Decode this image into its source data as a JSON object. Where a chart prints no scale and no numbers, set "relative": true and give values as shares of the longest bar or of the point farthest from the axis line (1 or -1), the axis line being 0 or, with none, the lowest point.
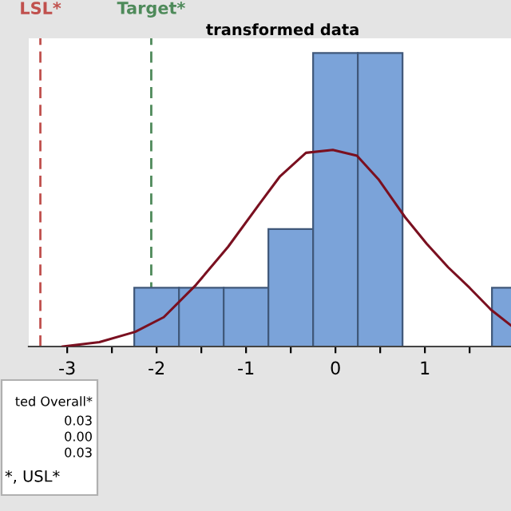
{
  "chart_data": {
    "type": "histogram",
    "title": "transformed data",
    "relative": true,
    "grid": false,
    "legend": false,
    "tick_labels": "x",
    "bins": [
      -2.25,
      -1.75,
      -1.25,
      -0.75,
      -0.25,
      0.25,
      0.75,
      1.25,
      1.75,
      2.25
    ],
    "values": [
      0.2,
      0.2,
      0.2,
      0.4,
      1,
      1,
      0,
      0,
      0.2
    ],
    "color": "#7ba3d9",
    "series": [
      {
        "type": "line",
        "color": "#7a1020",
        "x": [
          -3.05,
          -2.64,
          -2.24,
          -1.92,
          -1.56,
          -1.2,
          -0.84,
          -0.62,
          -0.33,
          -0.03,
          0.24,
          0.48,
          0.78,
          1.02,
          1.26,
          1.5,
          1.74,
          1.97
        ],
        "values": [
          0,
          0.015,
          0.05,
          0.1,
          0.21,
          0.34,
          0.49,
          0.58,
          0.66,
          0.67,
          0.65,
          0.57,
          0.44,
          0.35,
          0.27,
          0.2,
          0.125,
          0.07
        ]
      }
    ],
    "xlim": [
      -3.43,
      2.25
    ],
    "xticks": [
      -3,
      {
        "value": -2.5,
        "label": null
      },
      -2,
      {
        "value": -1.5,
        "label": null
      },
      -1,
      {
        "value": -0.5,
        "label": null
      },
      0,
      {
        "value": 0.5,
        "label": null
      },
      1,
      {
        "value": 1.5,
        "label": null
      }
    ],
    "ref_lines": [
      {
        "axis": "x",
        "value": -3.3,
        "label": "LSL*",
        "color": "#c0504d",
        "line_style": "dashed"
      },
      {
        "axis": "x",
        "value": -2.06,
        "label": "Target*",
        "color": "#4e8a5a",
        "line_style": "dashed"
      }
    ],
    "annotations": [
      "ted Overall*",
      "0.03",
      "0.00",
      "0.03",
      "*, USL*"
    ]
  }
}
